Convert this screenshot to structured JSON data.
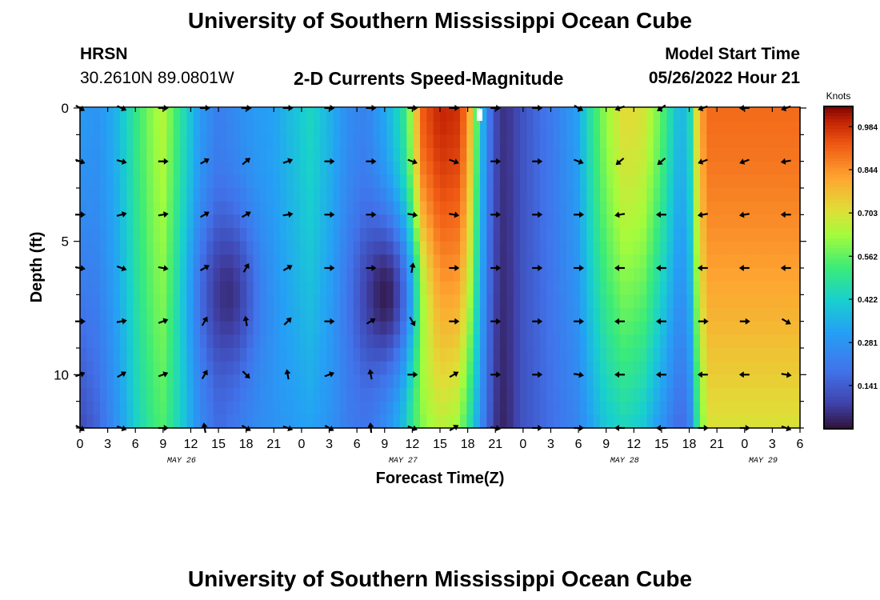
{
  "header": {
    "title": "University of Southern Mississippi Ocean Cube",
    "station": "HRSN",
    "coords": "30.2610N  89.0801W",
    "subtitle": "2-D Currents Speed-Magnitude",
    "model_start_label": "Model Start Time",
    "model_start_value": "05/26/2022 Hour 21"
  },
  "footer": {
    "title": "University of Southern Mississippi Ocean Cube"
  },
  "chart_data": {
    "type": "heatmap",
    "title": "2-D Currents Speed-Magnitude",
    "xlabel": "Forecast Time(Z)",
    "ylabel": "Depth (ft)",
    "x_ticks": [
      "0",
      "3",
      "6",
      "9",
      "12",
      "15",
      "18",
      "21",
      "0",
      "3",
      "6",
      "9",
      "12",
      "15",
      "18",
      "21",
      "0",
      "3",
      "6",
      "9",
      "12",
      "15",
      "18",
      "21",
      "0",
      "3",
      "6"
    ],
    "x_hours": [
      0,
      3,
      6,
      9,
      12,
      15,
      18,
      21,
      24,
      27,
      30,
      33,
      36,
      39,
      42,
      45,
      48,
      51,
      54,
      57,
      60,
      63,
      66,
      69,
      72,
      75,
      78
    ],
    "date_labels": [
      {
        "label": "MAY 26",
        "hour": 11
      },
      {
        "label": "MAY 27",
        "hour": 35
      },
      {
        "label": "MAY 28",
        "hour": 59
      },
      {
        "label": "MAY 29",
        "hour": 74
      }
    ],
    "y_ticks": [
      0,
      5,
      10
    ],
    "xlim": [
      0,
      78
    ],
    "ylim": [
      0,
      12
    ],
    "colorbar": {
      "label": "Knots",
      "ticks": [
        "0.984",
        "0.844",
        "0.703",
        "0.562",
        "0.422",
        "0.281",
        "0.141"
      ],
      "tick_values": [
        0.984,
        0.844,
        0.703,
        0.562,
        0.422,
        0.281,
        0.141
      ],
      "range": [
        0,
        1.05
      ]
    },
    "speed_profile_surface": [
      [
        0,
        0.3
      ],
      [
        2,
        0.28
      ],
      [
        4,
        0.36
      ],
      [
        6,
        0.5
      ],
      [
        8,
        0.62
      ],
      [
        9,
        0.65
      ],
      [
        11,
        0.48
      ],
      [
        13,
        0.3
      ],
      [
        15,
        0.22
      ],
      [
        17,
        0.26
      ],
      [
        19,
        0.3
      ],
      [
        21,
        0.32
      ],
      [
        23,
        0.38
      ],
      [
        25,
        0.44
      ],
      [
        27,
        0.36
      ],
      [
        29,
        0.26
      ],
      [
        31,
        0.23
      ],
      [
        33,
        0.33
      ],
      [
        35,
        0.48
      ],
      [
        36,
        0.65
      ],
      [
        37,
        0.92
      ],
      [
        39,
        1.0
      ],
      [
        41,
        0.98
      ],
      [
        42,
        0.86
      ],
      [
        43,
        0.55
      ],
      [
        44,
        0.25
      ],
      [
        45,
        0.1
      ],
      [
        46,
        0.05
      ],
      [
        47,
        0.08
      ],
      [
        48,
        0.12
      ],
      [
        50,
        0.18
      ],
      [
        52,
        0.24
      ],
      [
        54,
        0.32
      ],
      [
        55,
        0.45
      ],
      [
        57,
        0.62
      ],
      [
        59,
        0.72
      ],
      [
        61,
        0.7
      ],
      [
        63,
        0.56
      ],
      [
        65,
        0.35
      ],
      [
        66,
        0.42
      ],
      [
        67,
        0.78
      ],
      [
        68,
        0.9
      ]
    ],
    "speed_profile_bottom": [
      [
        0,
        0.1
      ],
      [
        2,
        0.16
      ],
      [
        4,
        0.28
      ],
      [
        6,
        0.42
      ],
      [
        8,
        0.52
      ],
      [
        9,
        0.54
      ],
      [
        11,
        0.42
      ],
      [
        13,
        0.26
      ],
      [
        15,
        0.18
      ],
      [
        17,
        0.22
      ],
      [
        19,
        0.26
      ],
      [
        21,
        0.28
      ],
      [
        23,
        0.3
      ],
      [
        25,
        0.32
      ],
      [
        27,
        0.28
      ],
      [
        29,
        0.22
      ],
      [
        31,
        0.2
      ],
      [
        33,
        0.28
      ],
      [
        35,
        0.4
      ],
      [
        36,
        0.52
      ],
      [
        37,
        0.6
      ],
      [
        39,
        0.66
      ],
      [
        41,
        0.62
      ],
      [
        42,
        0.5
      ],
      [
        43,
        0.34
      ],
      [
        44,
        0.18
      ],
      [
        45,
        0.06
      ],
      [
        46,
        0.03
      ],
      [
        47,
        0.07
      ],
      [
        48,
        0.12
      ],
      [
        50,
        0.16
      ],
      [
        52,
        0.2
      ],
      [
        54,
        0.24
      ],
      [
        55,
        0.3
      ],
      [
        57,
        0.4
      ],
      [
        59,
        0.44
      ],
      [
        61,
        0.4
      ],
      [
        63,
        0.28
      ],
      [
        65,
        0.16
      ],
      [
        66,
        0.22
      ],
      [
        67,
        0.52
      ],
      [
        68,
        0.7
      ]
    ],
    "slow_cores": [
      {
        "hour": 16,
        "depth": 7.0,
        "speed": 0.05
      },
      {
        "hour": 33,
        "depth": 7.0,
        "speed": 0.02
      }
    ],
    "arrows": {
      "depths": [
        0,
        2,
        4,
        6,
        8,
        10,
        12
      ],
      "hours": [
        0,
        4.5,
        9,
        13.5,
        18,
        22.5,
        27,
        31.5,
        36,
        40.5,
        45,
        49.5,
        54,
        58.5,
        63,
        67.5,
        72,
        76.5
      ],
      "directions_deg": [
        [
          -30,
          -25,
          0,
          0,
          0,
          0,
          0,
          0,
          0,
          0,
          0,
          0,
          -30,
          200,
          215,
          200,
          180,
          200
        ],
        [
          -20,
          -15,
          0,
          30,
          40,
          20,
          0,
          0,
          -20,
          -20,
          0,
          0,
          -20,
          220,
          220,
          200,
          200,
          190
        ],
        [
          0,
          15,
          10,
          30,
          30,
          10,
          0,
          0,
          -10,
          -10,
          0,
          0,
          0,
          190,
          180,
          190,
          190,
          180
        ],
        [
          -10,
          -20,
          -10,
          30,
          60,
          30,
          0,
          0,
          80,
          0,
          0,
          0,
          0,
          180,
          180,
          180,
          180,
          180
        ],
        [
          0,
          10,
          20,
          60,
          100,
          45,
          0,
          30,
          -60,
          0,
          0,
          0,
          0,
          180,
          180,
          0,
          0,
          -30
        ],
        [
          20,
          30,
          20,
          60,
          -45,
          100,
          20,
          100,
          0,
          30,
          0,
          0,
          -10,
          180,
          180,
          180,
          180,
          -10
        ],
        [
          -30,
          -20,
          0,
          100,
          -30,
          -20,
          -30,
          95,
          -20,
          30,
          -10,
          0,
          0,
          180,
          180,
          0,
          0,
          -20
        ]
      ]
    }
  }
}
